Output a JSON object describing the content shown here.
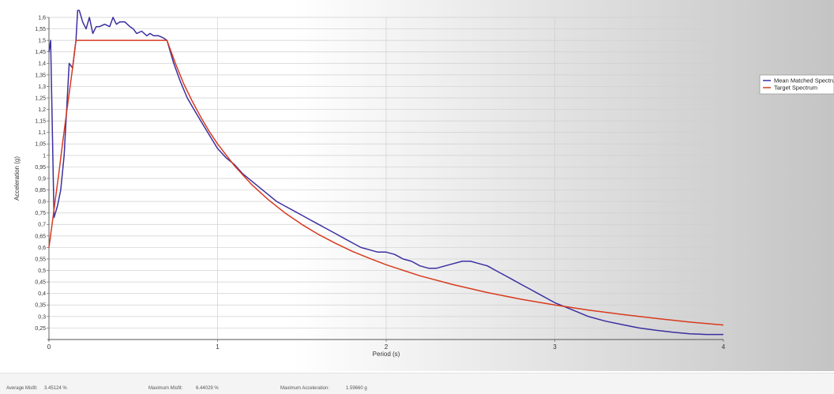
{
  "chart_data": {
    "type": "line",
    "xlabel": "Period (s)",
    "ylabel": "Acceleration (g)",
    "xlim": [
      0,
      4
    ],
    "ylim": [
      0.2,
      1.6
    ],
    "x_ticks": [
      "0",
      "1",
      "2",
      "3",
      "4"
    ],
    "y_ticks": [
      "0,25",
      "0,3",
      "0,35",
      "0,4",
      "0,45",
      "0,5",
      "0,55",
      "0,6",
      "0,65",
      "0,7",
      "0,75",
      "0,8",
      "0,85",
      "0,9",
      "0,95",
      "1",
      "1,05",
      "1,1",
      "1,15",
      "1,2",
      "1,25",
      "1,3",
      "1,35",
      "1,4",
      "1,45",
      "1,5",
      "1,55",
      "1,6"
    ],
    "grid": true,
    "legend_position": "right",
    "series": [
      {
        "name": "Mean Matched Spectrum",
        "color": "#3b2fa0",
        "x": [
          0.0,
          0.01,
          0.03,
          0.05,
          0.07,
          0.09,
          0.12,
          0.14,
          0.16,
          0.17,
          0.18,
          0.2,
          0.22,
          0.24,
          0.26,
          0.28,
          0.3,
          0.33,
          0.36,
          0.38,
          0.4,
          0.42,
          0.45,
          0.48,
          0.5,
          0.52,
          0.55,
          0.58,
          0.6,
          0.62,
          0.65,
          0.68,
          0.7,
          0.74,
          0.78,
          0.82,
          0.86,
          0.9,
          0.95,
          1.0,
          1.05,
          1.1,
          1.15,
          1.2,
          1.25,
          1.3,
          1.35,
          1.4,
          1.45,
          1.5,
          1.55,
          1.6,
          1.65,
          1.7,
          1.75,
          1.8,
          1.85,
          1.9,
          1.95,
          2.0,
          2.05,
          2.1,
          2.15,
          2.2,
          2.25,
          2.3,
          2.35,
          2.4,
          2.45,
          2.5,
          2.55,
          2.6,
          2.65,
          2.7,
          2.75,
          2.8,
          2.85,
          2.9,
          2.95,
          3.0,
          3.1,
          3.2,
          3.3,
          3.4,
          3.5,
          3.6,
          3.7,
          3.8,
          3.9,
          4.0
        ],
        "values": [
          1.45,
          1.5,
          0.73,
          0.78,
          0.85,
          1.0,
          1.4,
          1.38,
          1.5,
          1.63,
          1.63,
          1.58,
          1.55,
          1.6,
          1.53,
          1.56,
          1.56,
          1.57,
          1.56,
          1.6,
          1.57,
          1.58,
          1.58,
          1.56,
          1.55,
          1.53,
          1.54,
          1.52,
          1.53,
          1.52,
          1.52,
          1.51,
          1.5,
          1.4,
          1.32,
          1.25,
          1.2,
          1.15,
          1.09,
          1.03,
          0.99,
          0.96,
          0.92,
          0.89,
          0.86,
          0.83,
          0.8,
          0.78,
          0.76,
          0.74,
          0.72,
          0.7,
          0.68,
          0.66,
          0.64,
          0.62,
          0.6,
          0.59,
          0.58,
          0.58,
          0.57,
          0.55,
          0.54,
          0.52,
          0.51,
          0.51,
          0.52,
          0.53,
          0.54,
          0.54,
          0.53,
          0.52,
          0.5,
          0.48,
          0.46,
          0.44,
          0.42,
          0.4,
          0.38,
          0.36,
          0.33,
          0.3,
          0.28,
          0.265,
          0.25,
          0.24,
          0.232,
          0.225,
          0.222,
          0.222
        ]
      },
      {
        "name": "Target Spectrum",
        "color": "#d83a1e",
        "x": [
          0.0,
          0.02,
          0.04,
          0.06,
          0.08,
          0.1,
          0.12,
          0.14,
          0.16,
          0.2,
          0.3,
          0.4,
          0.5,
          0.6,
          0.7,
          0.75,
          0.8,
          0.85,
          0.9,
          0.95,
          1.0,
          1.1,
          1.2,
          1.3,
          1.4,
          1.5,
          1.6,
          1.7,
          1.8,
          1.9,
          2.0,
          2.2,
          2.4,
          2.6,
          2.8,
          3.0,
          3.2,
          3.4,
          3.6,
          3.8,
          4.0
        ],
        "values": [
          0.6,
          0.71,
          0.82,
          0.93,
          1.05,
          1.16,
          1.27,
          1.38,
          1.5,
          1.5,
          1.5,
          1.5,
          1.5,
          1.5,
          1.5,
          1.4,
          1.31,
          1.235,
          1.167,
          1.105,
          1.05,
          0.955,
          0.875,
          0.808,
          0.75,
          0.7,
          0.656,
          0.618,
          0.583,
          0.553,
          0.525,
          0.477,
          0.438,
          0.404,
          0.375,
          0.35,
          0.328,
          0.309,
          0.292,
          0.276,
          0.263
        ]
      }
    ]
  },
  "stats": {
    "average_misfit_label": "Average Misfit:",
    "average_misfit_value": "3.45124 %",
    "maximum_misfit_label": "Maximum Misfit:",
    "maximum_misfit_value": "6.44029 %",
    "maximum_acceleration_label": "Maximum Acceleration:",
    "maximum_acceleration_value": "1.59660 g"
  }
}
